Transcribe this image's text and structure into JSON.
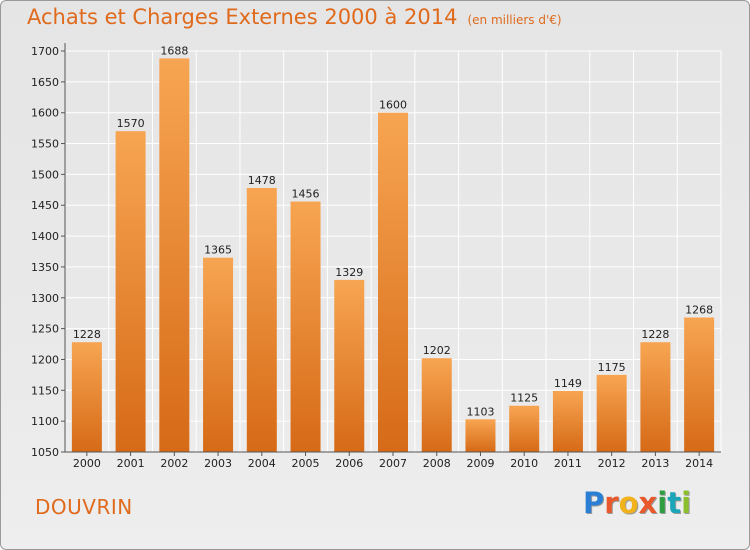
{
  "header": {
    "title": "Achats et Charges Externes 2000 à 2014",
    "subtitle": "(en milliers d'€)"
  },
  "footer": {
    "city": "DOUVRIN",
    "logo_letters": [
      {
        "ch": "P",
        "color": "#2a7fd4"
      },
      {
        "ch": "r",
        "color": "#e8582a"
      },
      {
        "ch": "o",
        "color": "#f2b21b"
      },
      {
        "ch": "x",
        "color": "#e8582a"
      },
      {
        "ch": "i",
        "color": "#2e9e40"
      },
      {
        "ch": "t",
        "color": "#1aa6b8"
      },
      {
        "ch": "i",
        "color": "#8bbf2e"
      }
    ]
  },
  "colors": {
    "title": "#e06a1c",
    "bar_top": "#f7a552",
    "bar_bottom": "#d66a17"
  },
  "chart_data": {
    "type": "bar",
    "title": "Achats et Charges Externes 2000 à 2014",
    "subtitle": "(en milliers d'€)",
    "categories": [
      "2000",
      "2001",
      "2002",
      "2003",
      "2004",
      "2005",
      "2006",
      "2007",
      "2008",
      "2009",
      "2010",
      "2011",
      "2012",
      "2013",
      "2014"
    ],
    "values": [
      1228,
      1570,
      1688,
      1365,
      1478,
      1456,
      1329,
      1600,
      1202,
      1103,
      1125,
      1149,
      1175,
      1228,
      1268
    ],
    "xlabel": "",
    "ylabel": "",
    "ylim": [
      1050,
      1700
    ],
    "yticks": [
      1050,
      1100,
      1150,
      1200,
      1250,
      1300,
      1350,
      1400,
      1450,
      1500,
      1550,
      1600,
      1650,
      1700
    ],
    "grid": true
  }
}
